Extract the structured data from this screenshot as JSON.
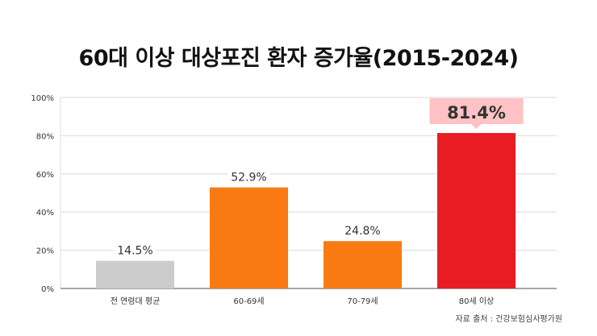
{
  "chart_data": {
    "type": "bar",
    "title": "60대 이상 대상포진 환자 증가율(2015-2024)",
    "categories": [
      "전 연령대 평균",
      "60-69세",
      "70-79세",
      "80세 이상"
    ],
    "values": [
      14.5,
      52.9,
      24.8,
      81.4
    ],
    "data_labels": [
      "14.5%",
      "52.9%",
      "24.8%",
      "81.4%"
    ],
    "colors": [
      "#cccccc",
      "#f97a12",
      "#f97a12",
      "#e81c23"
    ],
    "highlight": {
      "index": 3,
      "label_bg": "#ffc2c4"
    },
    "ylim": [
      0,
      100
    ],
    "yticks": [
      "0%",
      "20%",
      "40%",
      "60%",
      "80%",
      "100%"
    ],
    "ytick_values": [
      0,
      20,
      40,
      60,
      80,
      100
    ],
    "grid": true,
    "xlabel": "",
    "ylabel": ""
  },
  "source": "자료 출처 : 건강보험심사평가원"
}
